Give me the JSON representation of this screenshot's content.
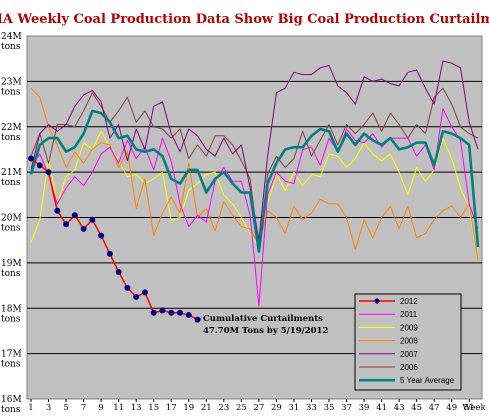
{
  "chart_data": {
    "type": "line",
    "title": "EIA Weekly Coal Production Data Show Big Coal Production Curtailments",
    "xlabel": "Week",
    "ylabel": "",
    "x_tick_labels": [
      "1",
      "3",
      "5",
      "7",
      "9",
      "11",
      "13",
      "15",
      "17",
      "19",
      "21",
      "23",
      "25",
      "27",
      "29",
      "31",
      "33",
      "35",
      "37",
      "39",
      "41",
      "43",
      "45",
      "47",
      "49",
      "51"
    ],
    "y_ticks": [
      {
        "value": 24,
        "label_top": "24M",
        "label_bottom": "tons"
      },
      {
        "value": 23,
        "label_top": "23M",
        "label_bottom": "tons"
      },
      {
        "value": 22,
        "label_top": "22M",
        "label_bottom": "tons"
      },
      {
        "value": 21,
        "label_top": "21M",
        "label_bottom": "tons"
      },
      {
        "value": 20,
        "label_top": "20M",
        "label_bottom": "tons"
      },
      {
        "value": 19,
        "label_top": "19M",
        "label_bottom": "tons"
      },
      {
        "value": 18,
        "label_top": "18M",
        "label_bottom": "tons"
      },
      {
        "value": 17,
        "label_top": "17M",
        "label_bottom": "tons"
      },
      {
        "value": 16,
        "label_top": "16M",
        "label_bottom": "tons"
      }
    ],
    "xlim": [
      1,
      52
    ],
    "ylim": [
      16,
      24
    ],
    "grid": true,
    "legend_position": "bottom-right",
    "plot_background": "#c0c0c0",
    "annotation": {
      "line1": "Cumulative Curtailments",
      "line2": "47.70M Tons by 5/19/2012",
      "anchor_week": 20,
      "anchor_value": 17.75
    },
    "series": [
      {
        "name": "2012",
        "color": "#ff0000",
        "marker_color": "#000080",
        "width": 1.5,
        "markers": true,
        "values": [
          21.3,
          21.15,
          21.0,
          20.15,
          19.85,
          20.05,
          19.75,
          19.95,
          19.6,
          19.2,
          18.8,
          18.45,
          18.25,
          18.35,
          17.9,
          17.95,
          17.9,
          17.9,
          17.85,
          17.75
        ]
      },
      {
        "name": "2011",
        "color": "#ff00ff",
        "width": 1,
        "values": [
          21.1,
          21.4,
          20.95,
          20.3,
          20.65,
          20.9,
          20.7,
          21.0,
          21.4,
          21.55,
          21.2,
          21.7,
          21.3,
          21.55,
          21.05,
          21.75,
          21.25,
          20.3,
          19.8,
          20.05,
          19.9,
          20.8,
          21.1,
          20.8,
          20.8,
          20.05,
          18.05,
          20.5,
          21.0,
          20.8,
          20.75,
          21.5,
          21.55,
          21.15,
          21.75,
          21.45,
          21.95,
          21.7,
          21.65,
          21.85,
          21.55,
          21.75,
          21.75,
          21.75,
          21.35,
          21.6,
          21.05,
          22.4,
          22.0,
          21.7,
          20.3,
          19.75
        ]
      },
      {
        "name": "2009",
        "color": "#ffff00",
        "width": 1,
        "values": [
          19.45,
          19.95,
          21.3,
          20.3,
          20.9,
          21.05,
          21.65,
          21.5,
          21.9,
          21.55,
          21.25,
          20.9,
          20.95,
          20.75,
          20.85,
          21.0,
          19.95,
          20.0,
          20.6,
          20.75,
          20.95,
          21.0,
          20.5,
          20.3,
          20.0,
          19.65,
          19.35,
          20.3,
          20.95,
          20.6,
          21.0,
          20.7,
          20.95,
          20.9,
          21.4,
          21.35,
          21.1,
          21.3,
          21.65,
          21.4,
          21.25,
          21.4,
          21.0,
          20.5,
          21.1,
          20.8,
          21.05,
          21.75,
          21.3,
          20.65,
          20.2,
          19.05
        ]
      },
      {
        "name": "2008",
        "color": "#ff8000",
        "width": 1,
        "values": [
          22.85,
          22.65,
          22.0,
          21.6,
          21.1,
          21.45,
          21.2,
          21.5,
          21.65,
          21.6,
          21.1,
          21.45,
          20.2,
          20.85,
          19.6,
          20.1,
          20.45,
          20.1,
          21.2,
          20.0,
          20.2,
          19.7,
          20.35,
          20.05,
          19.8,
          19.75,
          19.4,
          20.15,
          20.0,
          19.65,
          20.25,
          19.95,
          20.1,
          20.4,
          20.3,
          20.3,
          20.0,
          19.3,
          19.95,
          19.55,
          20.0,
          20.25,
          19.75,
          20.25,
          19.55,
          19.65,
          19.95,
          20.15,
          20.25,
          20.0,
          20.3,
          19.05
        ]
      },
      {
        "name": "2007",
        "color": "#800080",
        "width": 1,
        "values": [
          21.05,
          21.85,
          22.05,
          21.9,
          22.05,
          22.45,
          22.7,
          22.8,
          22.55,
          21.75,
          22.05,
          21.25,
          21.95,
          21.5,
          22.45,
          22.55,
          21.85,
          21.45,
          21.95,
          21.8,
          21.5,
          21.35,
          21.75,
          21.4,
          21.6,
          20.65,
          19.5,
          21.35,
          22.75,
          22.85,
          23.2,
          23.15,
          23.15,
          23.3,
          23.35,
          22.9,
          22.75,
          22.5,
          23.1,
          23.0,
          23.05,
          22.95,
          22.9,
          23.2,
          23.25,
          22.85,
          22.5,
          23.45,
          23.4,
          23.3,
          22.1,
          21.5
        ]
      },
      {
        "name": "2006",
        "color": "#804040",
        "width": 1,
        "values": [
          21.35,
          21.85,
          21.2,
          22.05,
          22.05,
          22.0,
          22.35,
          22.75,
          22.45,
          22.1,
          22.35,
          22.65,
          22.1,
          22.35,
          22.0,
          21.95,
          21.75,
          21.95,
          21.3,
          21.6,
          21.35,
          21.8,
          21.8,
          21.6,
          21.25,
          20.85,
          19.3,
          20.95,
          21.35,
          21.1,
          21.3,
          21.9,
          21.35,
          21.7,
          22.05,
          21.6,
          22.05,
          21.85,
          22.05,
          22.3,
          21.9,
          22.3,
          22.05,
          21.75,
          22.05,
          21.85,
          22.65,
          22.85,
          22.5,
          22.0,
          21.85,
          21.75
        ]
      },
      {
        "name": "5 Year Average",
        "color": "#008080",
        "width": 2.6,
        "values": [
          20.95,
          21.6,
          21.75,
          21.75,
          21.45,
          21.55,
          21.85,
          22.35,
          22.3,
          22.1,
          21.75,
          21.8,
          21.5,
          21.45,
          21.5,
          21.35,
          20.85,
          20.75,
          21.05,
          21.05,
          20.55,
          20.85,
          21.0,
          20.75,
          20.55,
          20.55,
          19.25,
          20.75,
          21.2,
          21.5,
          21.55,
          21.55,
          21.8,
          21.95,
          21.9,
          21.45,
          21.85,
          21.6,
          21.85,
          21.7,
          21.6,
          21.75,
          21.5,
          21.55,
          21.65,
          21.65,
          21.15,
          21.9,
          21.85,
          21.75,
          21.6,
          19.35
        ]
      }
    ]
  }
}
